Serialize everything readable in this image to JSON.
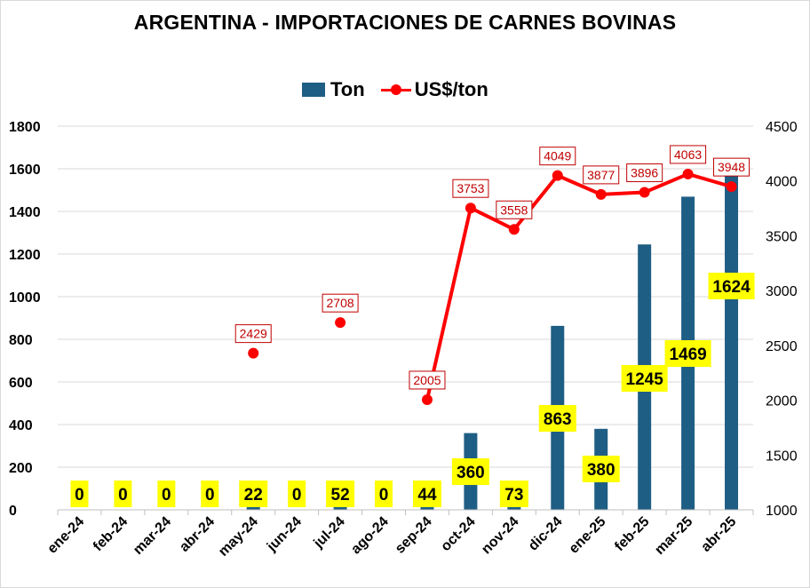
{
  "chart_data": {
    "type": "bar+line",
    "title": "ARGENTINA - IMPORTACIONES DE CARNES BOVINAS",
    "categories": [
      "ene-24",
      "feb-24",
      "mar-24",
      "abr-24",
      "may-24",
      "jun-24",
      "jul-24",
      "ago-24",
      "sep-24",
      "oct-24",
      "nov-24",
      "dic-24",
      "ene-25",
      "feb-25",
      "mar-25",
      "abr-25"
    ],
    "series": [
      {
        "name": "Ton",
        "type": "bar",
        "axis": "left",
        "color": "#1f5e84",
        "values": [
          0,
          0,
          0,
          0,
          22,
          0,
          52,
          0,
          44,
          360,
          73,
          863,
          380,
          1245,
          1469,
          1624
        ]
      },
      {
        "name": "US$/ton",
        "type": "line",
        "axis": "right",
        "color": "#ff0000",
        "values": [
          null,
          null,
          null,
          null,
          2429,
          null,
          2708,
          null,
          2005,
          3753,
          3558,
          4049,
          3877,
          3896,
          4063,
          3948
        ]
      }
    ],
    "y_left": {
      "min": 0,
      "max": 1800,
      "step": 200,
      "ticks": [
        "0",
        "200",
        "400",
        "600",
        "800",
        "1000",
        "1200",
        "1400",
        "1600",
        "1800"
      ]
    },
    "y_right": {
      "min": 1000,
      "max": 4500,
      "step": 500,
      "ticks": [
        "1000",
        "1500",
        "2000",
        "2500",
        "3000",
        "3500",
        "4000",
        "4500"
      ]
    },
    "grid": true,
    "legend_position": "top-center",
    "bar_label_bg": "#ffff00",
    "line_label_border": "#c00000"
  }
}
